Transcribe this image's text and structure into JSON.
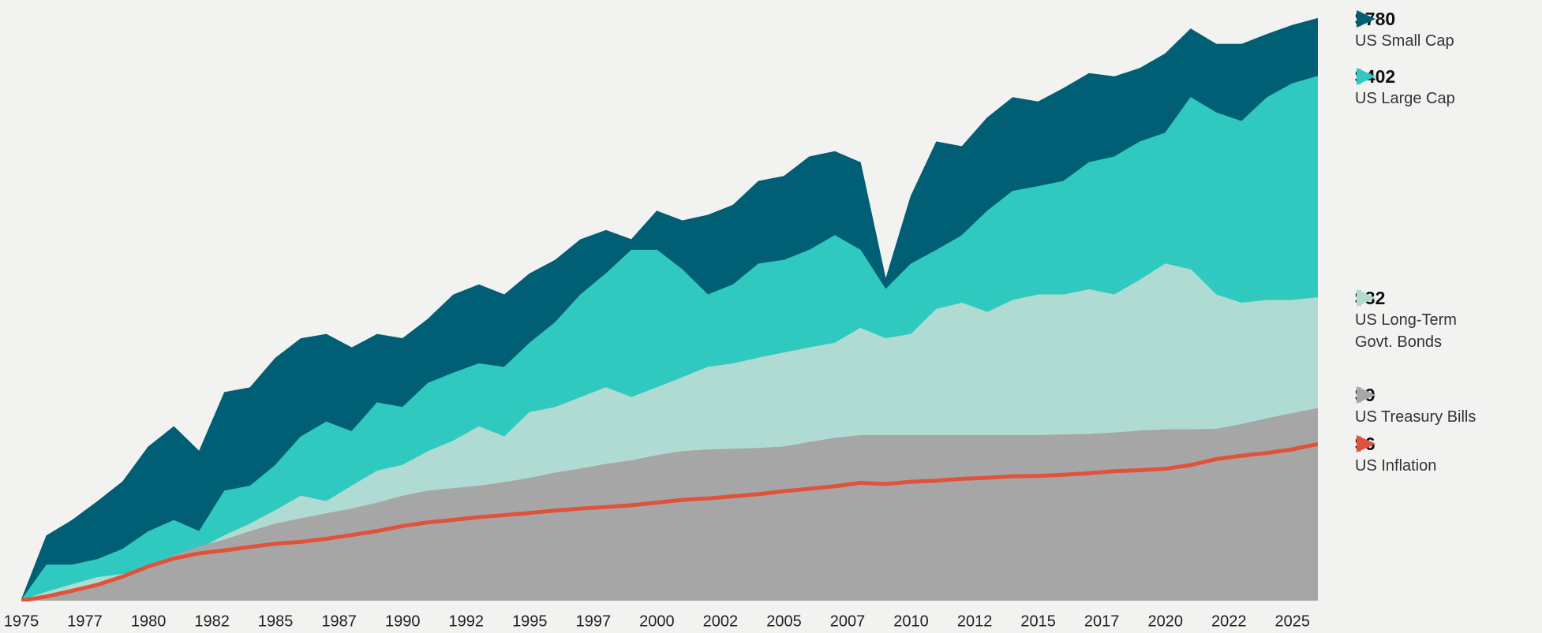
{
  "chart_data": {
    "type": "area",
    "log_scale": true,
    "grid": false,
    "legend_position": "right",
    "xlim": [
      1975,
      2026
    ],
    "ylim": [
      1,
      1000
    ],
    "xticks": [
      1975,
      {
        "value": 1977.5,
        "label": "1977"
      },
      1980,
      {
        "value": 1982.5,
        "label": "1982"
      },
      1985,
      {
        "value": 1987.5,
        "label": "1987"
      },
      1990,
      {
        "value": 1992.5,
        "label": "1992"
      },
      1995,
      {
        "value": 1997.5,
        "label": "1997"
      },
      2000,
      {
        "value": 2002.5,
        "label": "2002"
      },
      2005,
      {
        "value": 2007.5,
        "label": "2007"
      },
      2010,
      {
        "value": 2012.5,
        "label": "2012"
      },
      2015,
      {
        "value": 2017.5,
        "label": "2017"
      },
      2020,
      {
        "value": 2022.5,
        "label": "2022"
      },
      2025
    ],
    "x": [
      1975,
      1976,
      1977,
      1978,
      1979,
      1980,
      1981,
      1982,
      1983,
      1984,
      1985,
      1986,
      1987,
      1988,
      1989,
      1990,
      1991,
      1992,
      1993,
      1994,
      1995,
      1996,
      1997,
      1998,
      1999,
      2000,
      2001,
      2002,
      2003,
      2004,
      2005,
      2006,
      2007,
      2008,
      2009,
      2010,
      2011,
      2012,
      2013,
      2014,
      2015,
      2016,
      2017,
      2018,
      2019,
      2020,
      2021,
      2022,
      2023,
      2024,
      2025,
      2026
    ],
    "series": [
      {
        "name": "US Small Cap",
        "color": "#005e75",
        "style": "area",
        "end_label": "$780",
        "values": [
          1,
          2.1,
          2.5,
          3.1,
          3.9,
          5.8,
          7.3,
          5.5,
          10.8,
          11.4,
          16,
          20,
          21,
          18,
          21,
          20,
          25,
          33,
          37,
          33,
          42,
          49,
          62,
          69,
          62,
          86,
          77,
          82,
          92,
          121,
          128,
          160,
          170,
          150,
          39,
          102,
          190,
          180,
          250,
          315,
          300,
          350,
          415,
          400,
          440,
          520,
          690,
          580,
          580,
          650,
          720,
          780
        ]
      },
      {
        "name": "US Large Cap",
        "color": "#30c9c0",
        "style": "area",
        "end_label": "$402",
        "values": [
          1,
          1.5,
          1.5,
          1.6,
          1.8,
          2.2,
          2.5,
          2.2,
          3.5,
          3.7,
          4.7,
          6.5,
          7.7,
          6.9,
          9.6,
          9.1,
          12,
          13.5,
          15,
          14.4,
          19,
          24,
          33,
          42,
          55,
          55,
          44,
          33,
          37,
          47,
          49,
          55,
          65,
          55,
          35,
          47,
          55,
          65,
          86,
          108,
          114,
          121,
          150,
          160,
          190,
          210,
          315,
          265,
          240,
          315,
          370,
          402
        ]
      },
      {
        "name": "US Long-Term Govt. Bonds",
        "color": "#b0dbd2",
        "style": "area",
        "end_label": "$32",
        "values": [
          1,
          1.1,
          1.2,
          1.3,
          1.35,
          1.4,
          1.5,
          1.8,
          2.1,
          2.4,
          2.8,
          3.3,
          3.1,
          3.7,
          4.4,
          4.7,
          5.5,
          6.2,
          7.3,
          6.5,
          8.6,
          9.1,
          10.2,
          11.4,
          10.2,
          11.4,
          12.8,
          14.4,
          15,
          16,
          17,
          18,
          19,
          22.5,
          20,
          21,
          28,
          30,
          27,
          31,
          33,
          33,
          35,
          33,
          39,
          47,
          44,
          33,
          30,
          31,
          31,
          32
        ]
      },
      {
        "name": "US Treasury Bills",
        "color": "#a6a6a6",
        "style": "area",
        "end_label": "$9",
        "values": [
          1,
          1.06,
          1.11,
          1.19,
          1.31,
          1.45,
          1.67,
          1.85,
          2,
          2.2,
          2.4,
          2.55,
          2.7,
          2.85,
          3.05,
          3.3,
          3.5,
          3.6,
          3.7,
          3.85,
          4.05,
          4.3,
          4.5,
          4.75,
          4.95,
          5.25,
          5.5,
          5.6,
          5.65,
          5.7,
          5.8,
          6.1,
          6.4,
          6.6,
          6.6,
          6.6,
          6.6,
          6.6,
          6.6,
          6.6,
          6.6,
          6.65,
          6.7,
          6.8,
          6.95,
          7.05,
          7.05,
          7.1,
          7.5,
          8,
          8.5,
          9
        ]
      },
      {
        "name": "US Inflation",
        "color": "#e0523a",
        "style": "line",
        "end_label": "$6",
        "values": [
          1,
          1.05,
          1.12,
          1.2,
          1.32,
          1.48,
          1.62,
          1.72,
          1.78,
          1.85,
          1.92,
          1.96,
          2.03,
          2.12,
          2.22,
          2.35,
          2.45,
          2.52,
          2.6,
          2.66,
          2.73,
          2.8,
          2.87,
          2.92,
          2.98,
          3.07,
          3.17,
          3.22,
          3.3,
          3.38,
          3.5,
          3.6,
          3.7,
          3.85,
          3.8,
          3.9,
          3.95,
          4.03,
          4.08,
          4.15,
          4.17,
          4.22,
          4.3,
          4.4,
          4.45,
          4.52,
          4.72,
          5.05,
          5.25,
          5.42,
          5.65,
          6
        ]
      }
    ]
  }
}
